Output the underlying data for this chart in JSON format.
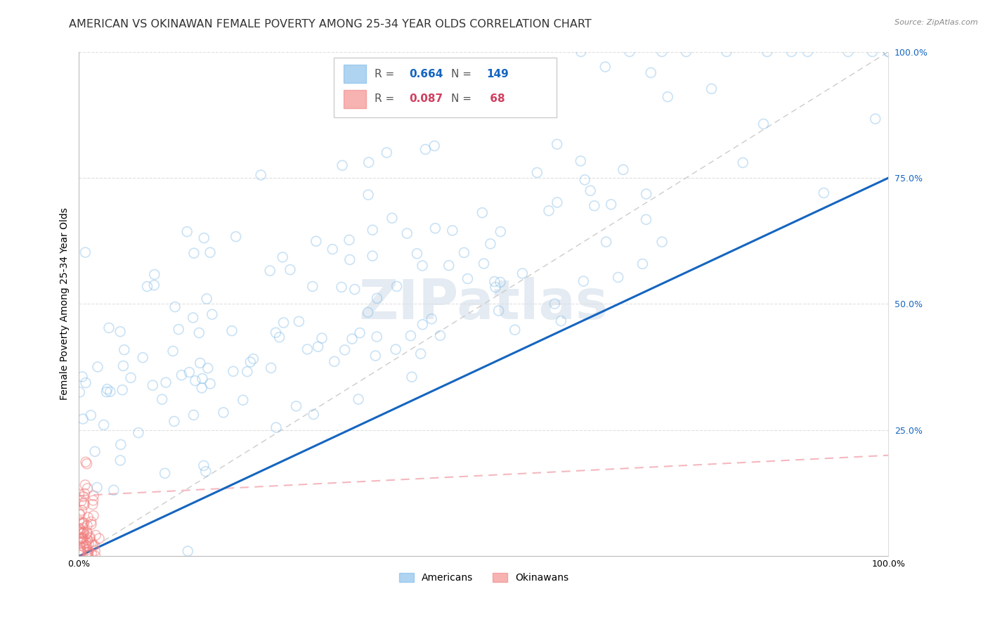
{
  "title": "AMERICAN VS OKINAWAN FEMALE POVERTY AMONG 25-34 YEAR OLDS CORRELATION CHART",
  "source": "Source: ZipAtlas.com",
  "ylabel": "Female Poverty Among 25-34 Year Olds",
  "xlim": [
    0,
    1
  ],
  "ylim": [
    0,
    1
  ],
  "watermark": "ZIPatlas",
  "american_R": 0.664,
  "american_N": 149,
  "okinawan_R": 0.087,
  "okinawan_N": 68,
  "american_color": "#7ab8e8",
  "okinawan_color": "#f28080",
  "regression_line_color": "#1565c0",
  "okinawan_regression_color": "#f4b8c0",
  "diagonal_color": "#cccccc",
  "background_color": "#ffffff",
  "grid_color": "#e0e0e0",
  "marker_size": 100,
  "alpha_american": 0.4,
  "alpha_okinawan": 0.5,
  "title_fontsize": 11.5,
  "axis_label_fontsize": 10,
  "tick_fontsize": 9,
  "right_label_color": "#1565c0"
}
